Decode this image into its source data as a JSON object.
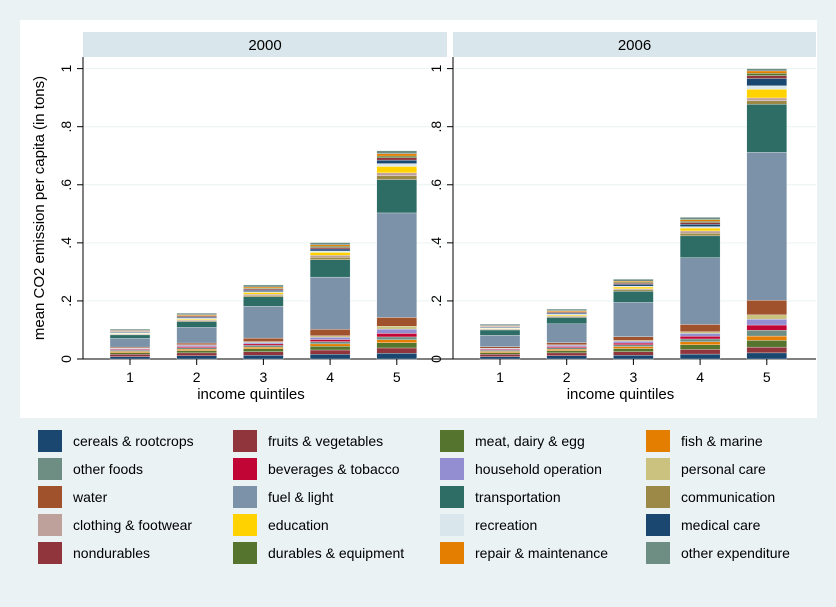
{
  "chart_data": {
    "type": "bar",
    "stacked": true,
    "ylabel": "mean CO2 emission per capita (in tons)",
    "xlabel": "income quintiles",
    "ylim": [
      0,
      1.04
    ],
    "yticks": [
      0,
      0.2,
      0.4,
      0.6,
      0.8,
      1
    ],
    "ytick_labels": [
      "0",
      ".2",
      ".4",
      ".6",
      ".8",
      "1"
    ],
    "categories": [
      "1",
      "2",
      "3",
      "4",
      "5"
    ],
    "legend_position": "bottom",
    "background": "#eaf2f3",
    "panels": [
      {
        "title": "2000",
        "stacks": [
          [
            0.008,
            0.008,
            0.006,
            0.004,
            0.004,
            0.003,
            0.003,
            0.001,
            0.004,
            0.03,
            0.012,
            0.002,
            0.002,
            0.002,
            0.001,
            0.003,
            0.002,
            0.001,
            0.002,
            0.005
          ],
          [
            0.011,
            0.01,
            0.008,
            0.005,
            0.005,
            0.004,
            0.004,
            0.002,
            0.006,
            0.054,
            0.02,
            0.003,
            0.003,
            0.003,
            0.002,
            0.004,
            0.003,
            0.002,
            0.003,
            0.006
          ],
          [
            0.013,
            0.012,
            0.01,
            0.006,
            0.006,
            0.005,
            0.005,
            0.003,
            0.012,
            0.11,
            0.032,
            0.005,
            0.004,
            0.006,
            0.003,
            0.005,
            0.004,
            0.003,
            0.004,
            0.007
          ],
          [
            0.016,
            0.015,
            0.013,
            0.008,
            0.008,
            0.007,
            0.008,
            0.005,
            0.022,
            0.18,
            0.06,
            0.008,
            0.007,
            0.01,
            0.005,
            0.007,
            0.005,
            0.004,
            0.005,
            0.008
          ],
          [
            0.02,
            0.018,
            0.018,
            0.01,
            0.01,
            0.012,
            0.015,
            0.01,
            0.03,
            0.36,
            0.115,
            0.013,
            0.01,
            0.022,
            0.01,
            0.012,
            0.008,
            0.006,
            0.008,
            0.01
          ]
        ]
      },
      {
        "title": "2006",
        "stacks": [
          [
            0.008,
            0.008,
            0.006,
            0.004,
            0.004,
            0.003,
            0.003,
            0.001,
            0.005,
            0.04,
            0.018,
            0.002,
            0.002,
            0.002,
            0.001,
            0.003,
            0.002,
            0.001,
            0.002,
            0.005
          ],
          [
            0.011,
            0.01,
            0.008,
            0.005,
            0.005,
            0.004,
            0.004,
            0.002,
            0.007,
            0.065,
            0.022,
            0.003,
            0.003,
            0.003,
            0.002,
            0.004,
            0.003,
            0.002,
            0.003,
            0.006
          ],
          [
            0.013,
            0.012,
            0.011,
            0.007,
            0.006,
            0.006,
            0.006,
            0.003,
            0.013,
            0.118,
            0.038,
            0.005,
            0.004,
            0.006,
            0.003,
            0.006,
            0.004,
            0.003,
            0.004,
            0.007
          ],
          [
            0.017,
            0.016,
            0.016,
            0.01,
            0.01,
            0.009,
            0.01,
            0.006,
            0.025,
            0.23,
            0.075,
            0.009,
            0.008,
            0.01,
            0.005,
            0.008,
            0.006,
            0.004,
            0.006,
            0.008
          ],
          [
            0.021,
            0.02,
            0.023,
            0.015,
            0.02,
            0.018,
            0.02,
            0.015,
            0.05,
            0.51,
            0.165,
            0.012,
            0.01,
            0.03,
            0.012,
            0.025,
            0.01,
            0.008,
            0.008,
            0.008
          ]
        ]
      }
    ],
    "series": [
      {
        "name": "cereals & rootcrops",
        "color": "#1a476f"
      },
      {
        "name": "fruits & vegetables",
        "color": "#90353b"
      },
      {
        "name": "meat, dairy & egg",
        "color": "#55752f"
      },
      {
        "name": "fish & marine",
        "color": "#e37e00"
      },
      {
        "name": "other foods",
        "color": "#6e8e84"
      },
      {
        "name": "beverages & tobacco",
        "color": "#c10534"
      },
      {
        "name": "household operation",
        "color": "#938dd2"
      },
      {
        "name": "personal care",
        "color": "#cac27e"
      },
      {
        "name": "water",
        "color": "#a0522d"
      },
      {
        "name": "fuel & light",
        "color": "#7b92a8"
      },
      {
        "name": "transportation",
        "color": "#2d6d66"
      },
      {
        "name": "communication",
        "color": "#9c8847"
      },
      {
        "name": "clothing & footwear",
        "color": "#bfa19c"
      },
      {
        "name": "education",
        "color": "#ffd200"
      },
      {
        "name": "recreation",
        "color": "#d9e6eb"
      },
      {
        "name": "medical care",
        "color": "#1a476f"
      },
      {
        "name": "nondurables",
        "color": "#90353b"
      },
      {
        "name": "durables & equipment",
        "color": "#55752f"
      },
      {
        "name": "repair & maintenance",
        "color": "#e37e00"
      },
      {
        "name": "other expenditure",
        "color": "#6e8e84"
      }
    ]
  }
}
